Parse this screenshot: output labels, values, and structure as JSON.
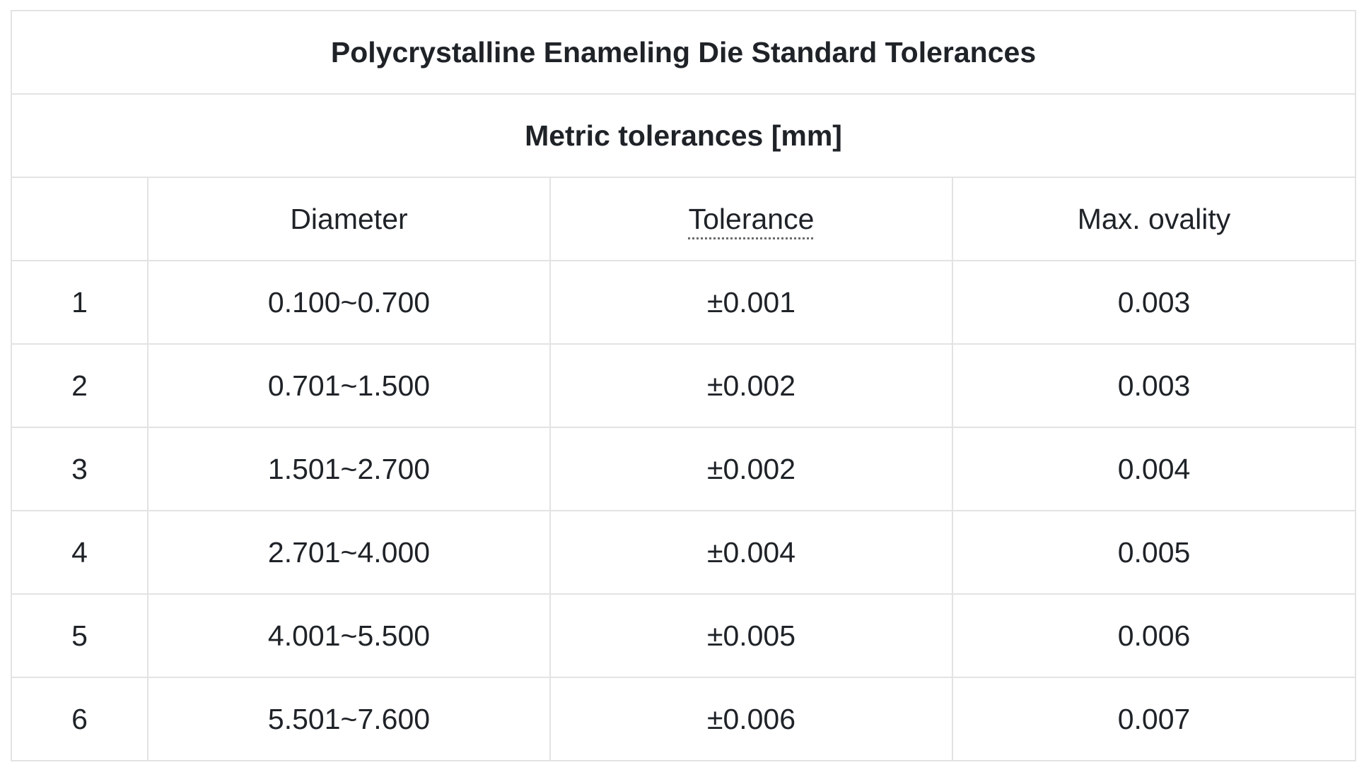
{
  "table": {
    "title": "Polycrystalline Enameling Die Standard Tolerances",
    "subtitle": "Metric tolerances [mm]",
    "headers": {
      "index": "",
      "diameter": "Diameter",
      "tolerance": "Tolerance",
      "ovality": "Max. ovality"
    },
    "rows": [
      {
        "index": "1",
        "diameter": "0.100~0.700",
        "tolerance": "±0.001",
        "ovality": "0.003"
      },
      {
        "index": "2",
        "diameter": "0.701~1.500",
        "tolerance": "±0.002",
        "ovality": "0.003"
      },
      {
        "index": "3",
        "diameter": "1.501~2.700",
        "tolerance": "±0.002",
        "ovality": "0.004"
      },
      {
        "index": "4",
        "diameter": "2.701~4.000",
        "tolerance": "±0.004",
        "ovality": "0.005"
      },
      {
        "index": "5",
        "diameter": "4.001~5.500",
        "tolerance": "±0.005",
        "ovality": "0.006"
      },
      {
        "index": "6",
        "diameter": "5.501~7.600",
        "tolerance": "±0.006",
        "ovality": "0.007"
      }
    ]
  }
}
